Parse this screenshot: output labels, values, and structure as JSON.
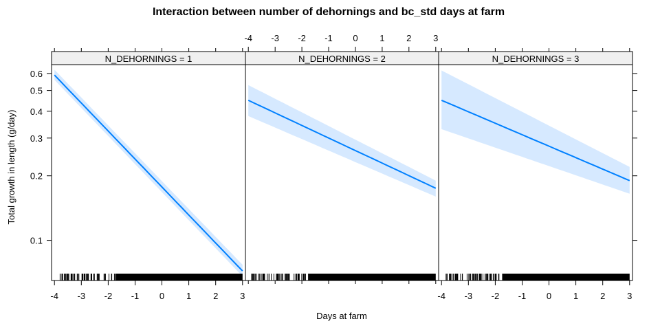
{
  "chart_data": {
    "type": "line",
    "title": "Interaction between number of dehornings and bc_std days at farm",
    "xlabel": "Days at farm",
    "ylabel": "Total growth in length (g/day)",
    "y_scale": "log",
    "xlim": [
      -4,
      3
    ],
    "ylim": [
      0.065,
      0.66
    ],
    "x_ticks": [
      -4,
      -3,
      -2,
      -1,
      0,
      1,
      2,
      3
    ],
    "y_ticks": [
      0.1,
      0.2,
      0.3,
      0.4,
      0.5,
      0.6
    ],
    "line_color": "#0080ff",
    "band_color": "#d6e9ff",
    "panels": [
      {
        "strip": "N_DEHORNINGS = 1",
        "x": [
          -4,
          3
        ],
        "y": [
          0.59,
          0.072
        ],
        "lower": [
          0.56,
          0.068
        ],
        "upper": [
          0.625,
          0.077
        ]
      },
      {
        "strip": "N_DEHORNINGS = 2",
        "x": [
          -4,
          3
        ],
        "y": [
          0.45,
          0.175
        ],
        "lower": [
          0.38,
          0.16
        ],
        "upper": [
          0.53,
          0.19
        ]
      },
      {
        "strip": "N_DEHORNINGS = 3",
        "x": [
          -4,
          3
        ],
        "y": [
          0.45,
          0.19
        ],
        "lower": [
          0.33,
          0.165
        ],
        "upper": [
          0.62,
          0.22
        ]
      }
    ]
  }
}
